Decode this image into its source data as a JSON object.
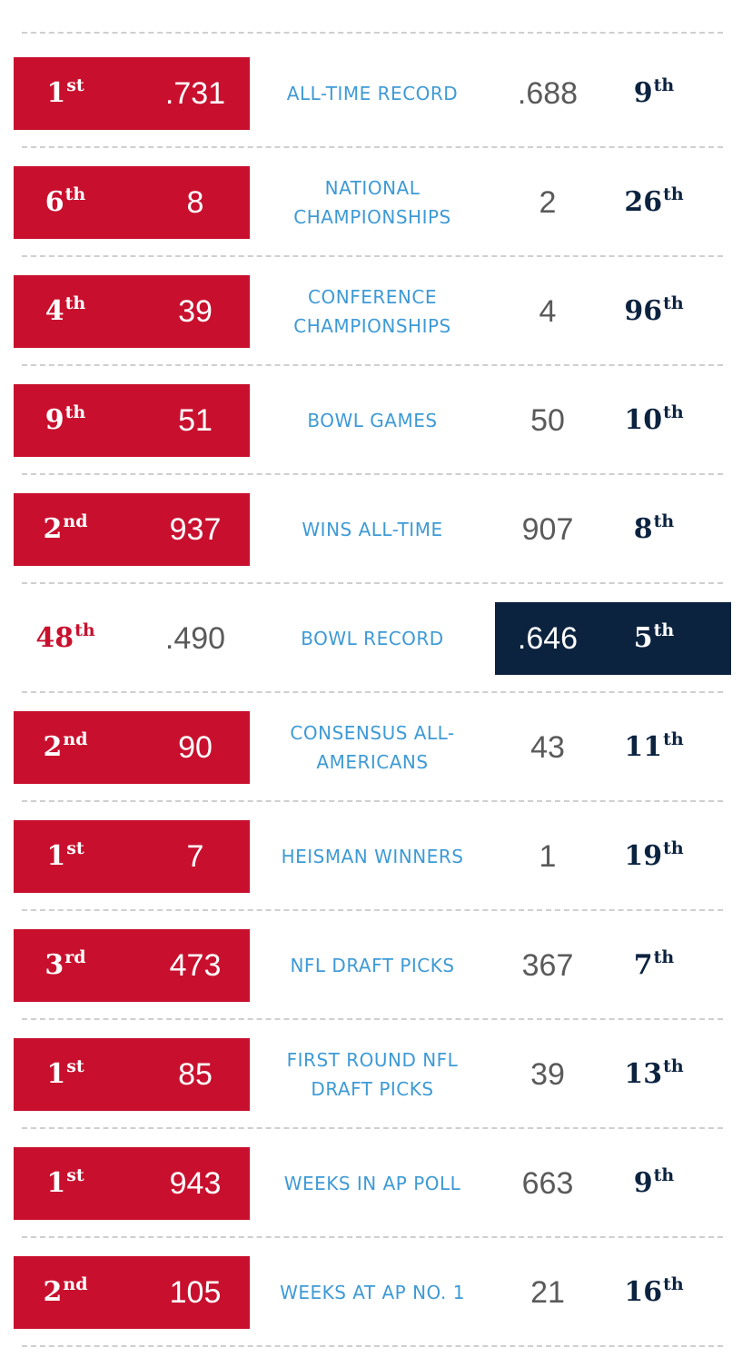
{
  "colors": {
    "left_team": "#c8102e",
    "right_team": "#0c2340",
    "label": "#3e9ad6",
    "neutral_value": "#5a5a5a",
    "divider": "#cfcfcf"
  },
  "rows": [
    {
      "label": "ALL-TIME RECORD",
      "left_rank_num": "1",
      "left_rank_suffix": "st",
      "left_value": ".731",
      "right_value": ".688",
      "right_rank_num": "9",
      "right_rank_suffix": "th",
      "leader": "left"
    },
    {
      "label": "NATIONAL CHAMPIONSHIPS",
      "left_rank_num": "6",
      "left_rank_suffix": "th",
      "left_value": "8",
      "right_value": "2",
      "right_rank_num": "26",
      "right_rank_suffix": "th",
      "leader": "left"
    },
    {
      "label": "CONFERENCE CHAMPIONSHIPS",
      "left_rank_num": "4",
      "left_rank_suffix": "th",
      "left_value": "39",
      "right_value": "4",
      "right_rank_num": "96",
      "right_rank_suffix": "th",
      "leader": "left"
    },
    {
      "label": "BOWL GAMES",
      "left_rank_num": "9",
      "left_rank_suffix": "th",
      "left_value": "51",
      "right_value": "50",
      "right_rank_num": "10",
      "right_rank_suffix": "th",
      "leader": "left"
    },
    {
      "label": "WINS ALL-TIME",
      "left_rank_num": "2",
      "left_rank_suffix": "nd",
      "left_value": "937",
      "right_value": "907",
      "right_rank_num": "8",
      "right_rank_suffix": "th",
      "leader": "left"
    },
    {
      "label": "BOWL RECORD",
      "left_rank_num": "48",
      "left_rank_suffix": "th",
      "left_value": ".490",
      "right_value": ".646",
      "right_rank_num": "5",
      "right_rank_suffix": "th",
      "leader": "right"
    },
    {
      "label": "CONSENSUS ALL-AMERICANS",
      "left_rank_num": "2",
      "left_rank_suffix": "nd",
      "left_value": "90",
      "right_value": "43",
      "right_rank_num": "11",
      "right_rank_suffix": "th",
      "leader": "left"
    },
    {
      "label": "HEISMAN WINNERS",
      "left_rank_num": "1",
      "left_rank_suffix": "st",
      "left_value": "7",
      "right_value": "1",
      "right_rank_num": "19",
      "right_rank_suffix": "th",
      "leader": "left"
    },
    {
      "label": "NFL DRAFT PICKS",
      "left_rank_num": "3",
      "left_rank_suffix": "rd",
      "left_value": "473",
      "right_value": "367",
      "right_rank_num": "7",
      "right_rank_suffix": "th",
      "leader": "left"
    },
    {
      "label": "FIRST ROUND NFL DRAFT PICKS",
      "left_rank_num": "1",
      "left_rank_suffix": "st",
      "left_value": "85",
      "right_value": "39",
      "right_rank_num": "13",
      "right_rank_suffix": "th",
      "leader": "left"
    },
    {
      "label": "WEEKS IN AP POLL",
      "left_rank_num": "1",
      "left_rank_suffix": "st",
      "left_value": "943",
      "right_value": "663",
      "right_rank_num": "9",
      "right_rank_suffix": "th",
      "leader": "left"
    },
    {
      "label": "WEEKS AT AP NO. 1",
      "left_rank_num": "2",
      "left_rank_suffix": "nd",
      "left_value": "105",
      "right_value": "21",
      "right_rank_num": "16",
      "right_rank_suffix": "th",
      "leader": "left"
    }
  ]
}
